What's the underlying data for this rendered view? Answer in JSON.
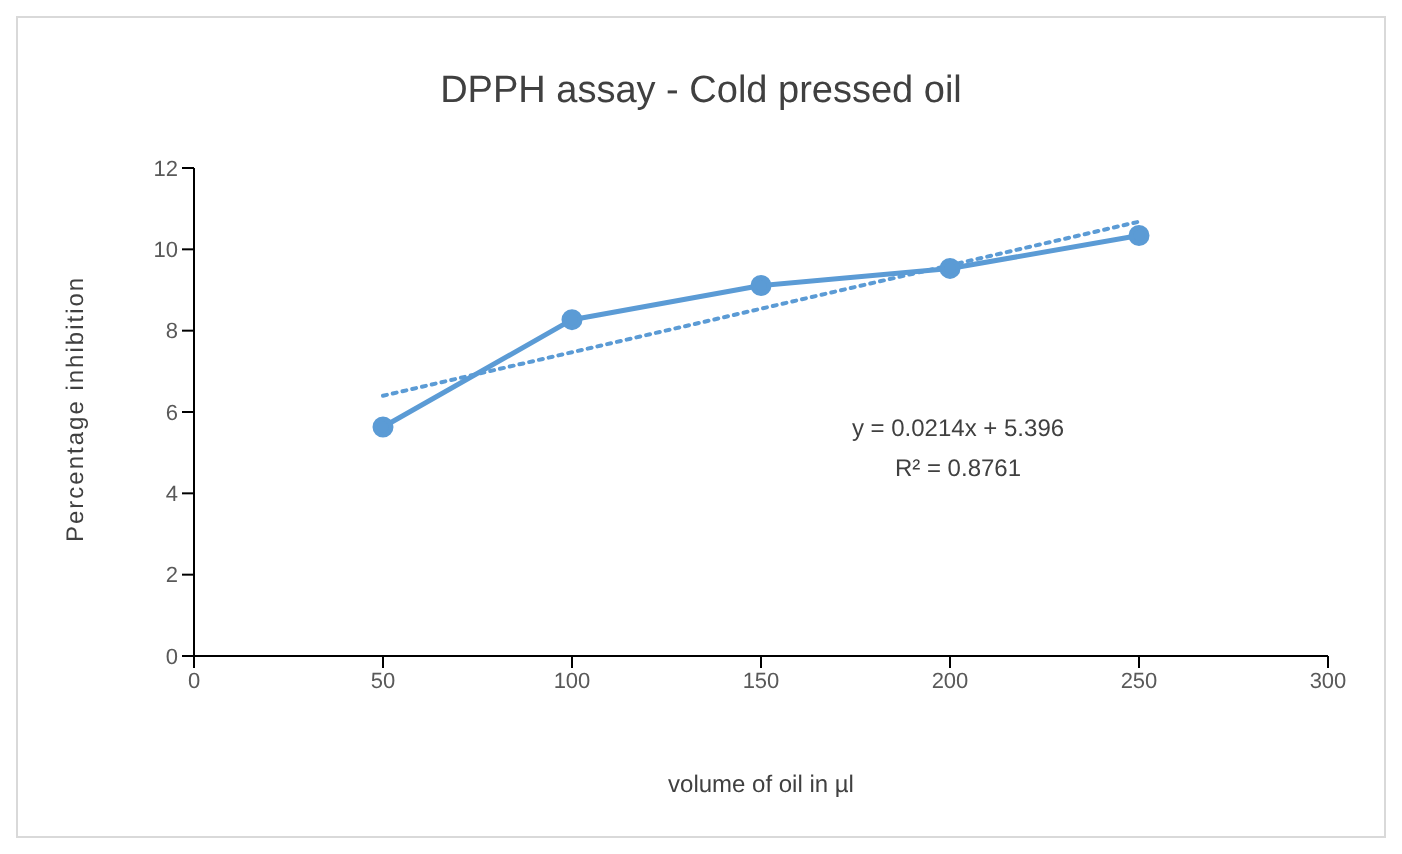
{
  "chart_data": {
    "type": "line",
    "title": "DPPH assay - Cold pressed oil",
    "xlabel": "volume of oil in µl",
    "ylabel": "Percentage inhibition",
    "x": [
      50,
      100,
      150,
      200,
      250
    ],
    "series": [
      {
        "color": "#5b9bd5",
        "values": [
          5.63,
          8.27,
          9.11,
          9.53,
          10.34
        ],
        "marker": "circle",
        "line_style": "solid"
      },
      {
        "type": "line",
        "x": [
          50,
          250
        ],
        "color": "#5b9bd5",
        "values": [
          6.4,
          10.68
        ],
        "marker": "none",
        "line_style": "dotted"
      }
    ],
    "xlim": [
      0,
      300
    ],
    "xticks": [
      0,
      50,
      100,
      150,
      200,
      250,
      300
    ],
    "ylim": [
      0,
      12
    ],
    "yticks": [
      0,
      2,
      4,
      6,
      8,
      10,
      12
    ],
    "grid": false,
    "legend": false,
    "annotations": [
      "y = 0.0214x + 5.396",
      "R² = 0.8761"
    ]
  }
}
